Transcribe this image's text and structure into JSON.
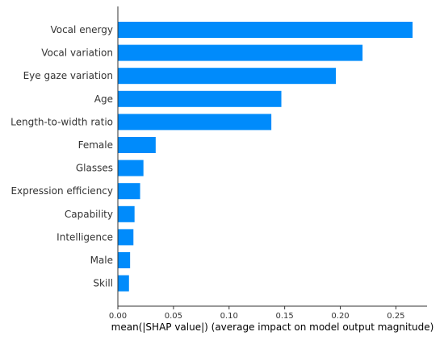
{
  "chart_data": {
    "type": "bar",
    "orientation": "horizontal",
    "categories": [
      "Vocal energy",
      "Vocal variation",
      "Eye gaze variation",
      "Age",
      "Length-to-width ratio",
      "Female",
      "Glasses",
      "Expression efficiency",
      "Capability",
      "Intelligence",
      "Male",
      "Skill"
    ],
    "values": [
      0.265,
      0.22,
      0.196,
      0.147,
      0.138,
      0.034,
      0.023,
      0.02,
      0.015,
      0.014,
      0.011,
      0.01
    ],
    "xlabel": "mean(|SHAP value|) (average impact on model output magnitude)",
    "ylabel": "",
    "xlim": [
      0,
      0.278
    ],
    "xticks": [
      0.0,
      0.05,
      0.1,
      0.15,
      0.2,
      0.25
    ],
    "xtick_labels": [
      "0.00",
      "0.05",
      "0.10",
      "0.15",
      "0.20",
      "0.25"
    ],
    "bar_color": "#008bfb",
    "grid": false
  }
}
